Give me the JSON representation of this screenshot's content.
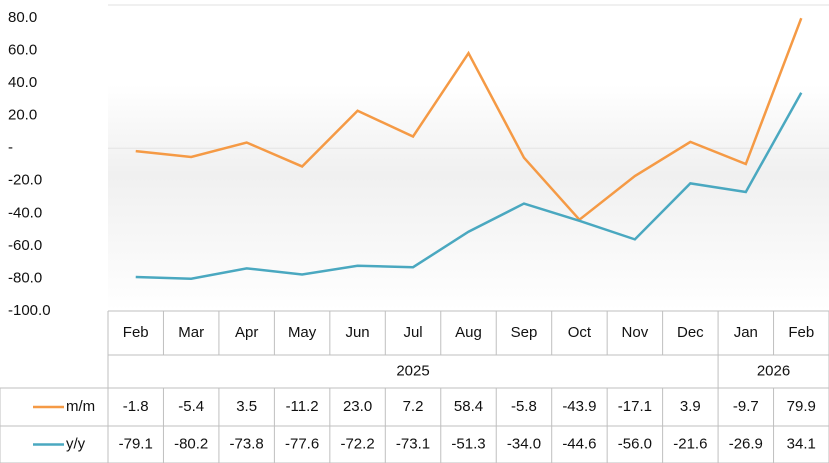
{
  "chart_data": {
    "type": "line",
    "categories": [
      "Feb",
      "Mar",
      "Apr",
      "May",
      "Jun",
      "Jul",
      "Aug",
      "Sep",
      "Oct",
      "Nov",
      "Dec",
      "Jan",
      "Feb"
    ],
    "groups": [
      {
        "label": "2025",
        "count": 11
      },
      {
        "label": "2026",
        "count": 2
      }
    ],
    "series": [
      {
        "name": "m/m",
        "color": "#f59a45",
        "values": [
          -1.8,
          -5.4,
          3.5,
          -11.2,
          23.0,
          7.2,
          58.4,
          -5.8,
          -43.9,
          -17.1,
          3.9,
          -9.7,
          79.9
        ],
        "value_labels": [
          "-1.8",
          "-5.4",
          "3.5",
          "-11.2",
          "23.0",
          "7.2",
          "58.4",
          "-5.8",
          "-43.9",
          "-17.1",
          "3.9",
          "-9.7",
          "79.9"
        ]
      },
      {
        "name": "y/y",
        "color": "#4aa8c0",
        "values": [
          -79.1,
          -80.2,
          -73.8,
          -77.6,
          -72.2,
          -73.1,
          -51.3,
          -34.0,
          -44.6,
          -56.0,
          -21.6,
          -26.9,
          34.1
        ],
        "value_labels": [
          "-79.1",
          "-80.2",
          "-73.8",
          "-77.6",
          "-72.2",
          "-73.1",
          "-51.3",
          "-34.0",
          "-44.6",
          "-56.0",
          "-21.6",
          "-26.9",
          "34.1"
        ]
      }
    ],
    "ylim": [
      -100,
      80
    ],
    "yticks": [
      {
        "value": -100,
        "label": "-100.0"
      },
      {
        "value": -80,
        "label": "-80.0"
      },
      {
        "value": -60,
        "label": "-60.0"
      },
      {
        "value": -40,
        "label": "-40.0"
      },
      {
        "value": -20,
        "label": "-20.0"
      },
      {
        "value": 0,
        "label": "-"
      },
      {
        "value": 20,
        "label": "20.0"
      },
      {
        "value": 40,
        "label": "40.0"
      },
      {
        "value": 60,
        "label": "60.0"
      },
      {
        "value": 80,
        "label": "80.0"
      }
    ]
  }
}
